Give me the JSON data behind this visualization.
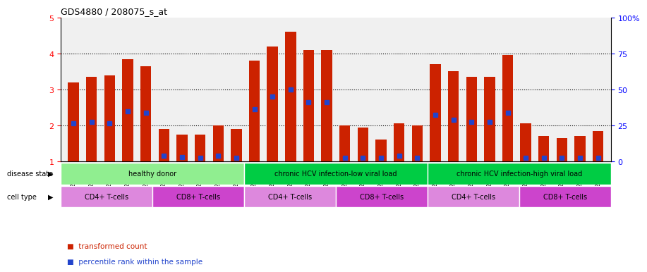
{
  "title": "GDS4880 / 208075_s_at",
  "samples": [
    "GSM1210739",
    "GSM1210740",
    "GSM1210741",
    "GSM1210742",
    "GSM1210743",
    "GSM1210754",
    "GSM1210755",
    "GSM1210756",
    "GSM1210757",
    "GSM1210758",
    "GSM1210745",
    "GSM1210750",
    "GSM1210751",
    "GSM1210752",
    "GSM1210753",
    "GSM1210760",
    "GSM1210765",
    "GSM1210766",
    "GSM1210767",
    "GSM1210768",
    "GSM1210744",
    "GSM1210746",
    "GSM1210747",
    "GSM1210748",
    "GSM1210749",
    "GSM1210759",
    "GSM1210761",
    "GSM1210762",
    "GSM1210763",
    "GSM1210764"
  ],
  "bar_values": [
    3.2,
    3.35,
    3.4,
    3.85,
    3.65,
    1.9,
    1.75,
    1.75,
    2.0,
    1.9,
    3.8,
    4.2,
    4.6,
    4.1,
    4.1,
    2.0,
    1.95,
    1.6,
    2.05,
    2.0,
    3.7,
    3.5,
    3.35,
    3.35,
    3.95,
    2.05,
    1.7,
    1.65,
    1.7,
    1.85
  ],
  "blue_dot_values": [
    2.05,
    2.1,
    2.05,
    2.4,
    2.35,
    1.15,
    1.12,
    1.1,
    1.15,
    1.1,
    2.45,
    2.8,
    3.0,
    2.65,
    2.65,
    1.1,
    1.1,
    1.1,
    1.15,
    1.1,
    2.3,
    2.15,
    2.1,
    2.1,
    2.35,
    1.1,
    1.1,
    1.1,
    1.1,
    1.1
  ],
  "disease_states": [
    {
      "label": "healthy donor",
      "start": 0,
      "end": 10,
      "color": "#90ee90"
    },
    {
      "label": "chronic HCV infection-low viral load",
      "start": 10,
      "end": 20,
      "color": "#00cc44"
    },
    {
      "label": "chronic HCV infection-high viral load",
      "start": 20,
      "end": 30,
      "color": "#00cc44"
    }
  ],
  "cell_types": [
    {
      "label": "CD4+ T-cells",
      "start": 0,
      "end": 5,
      "color": "#dd88dd"
    },
    {
      "label": "CD8+ T-cells",
      "start": 5,
      "end": 10,
      "color": "#cc44cc"
    },
    {
      "label": "CD4+ T-cells",
      "start": 10,
      "end": 15,
      "color": "#dd88dd"
    },
    {
      "label": "CD8+ T-cells",
      "start": 15,
      "end": 20,
      "color": "#cc44cc"
    },
    {
      "label": "CD4+ T-cells",
      "start": 20,
      "end": 25,
      "color": "#dd88dd"
    },
    {
      "label": "CD8+ T-cells",
      "start": 25,
      "end": 30,
      "color": "#cc44cc"
    }
  ],
  "bar_color": "#cc2200",
  "dot_color": "#2244cc",
  "ylim_left": [
    1,
    5
  ],
  "ylim_right": [
    0,
    100
  ],
  "yticks_left": [
    1,
    2,
    3,
    4,
    5
  ],
  "yticks_right": [
    0,
    25,
    50,
    75,
    100
  ],
  "ytick_labels_right": [
    "0",
    "25",
    "50",
    "75",
    "100%"
  ],
  "grid_values": [
    2,
    3,
    4
  ],
  "disease_state_label": "disease state",
  "cell_type_label": "cell type",
  "legend_items": [
    "transformed count",
    "percentile rank within the sample"
  ],
  "legend_colors": [
    "#cc2200",
    "#2244cc"
  ]
}
